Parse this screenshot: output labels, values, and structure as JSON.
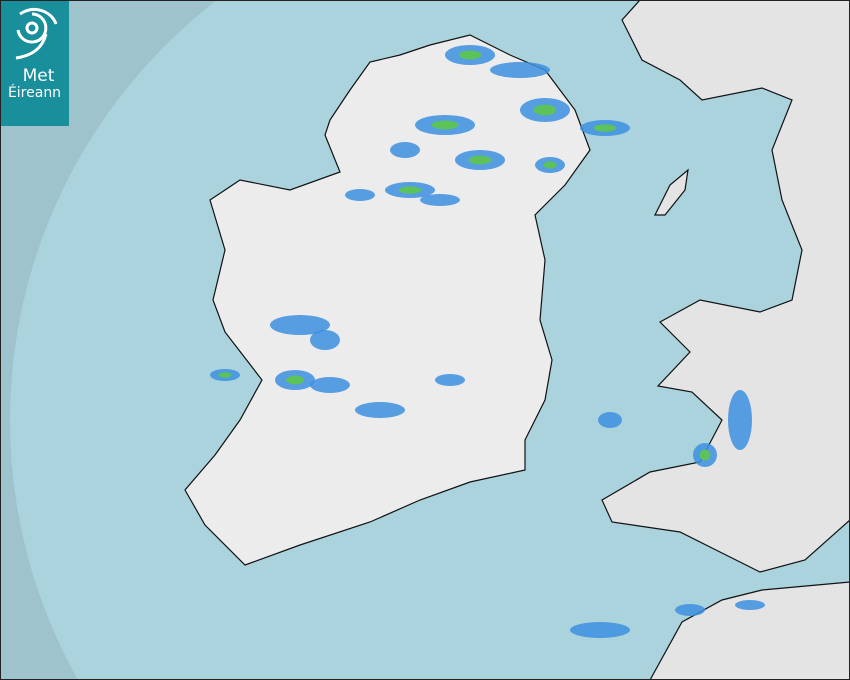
{
  "logo": {
    "line1": "Met",
    "line2": "Éireann"
  },
  "map": {
    "type": "rainfall-radar",
    "colors": {
      "sea_outside_coverage": "#9ec3cc",
      "sea_radar_coverage": "#aad3de",
      "land": "#ececec",
      "light_rain": "#3d8fe0",
      "moderate_rain": "#5cc25a"
    }
  }
}
